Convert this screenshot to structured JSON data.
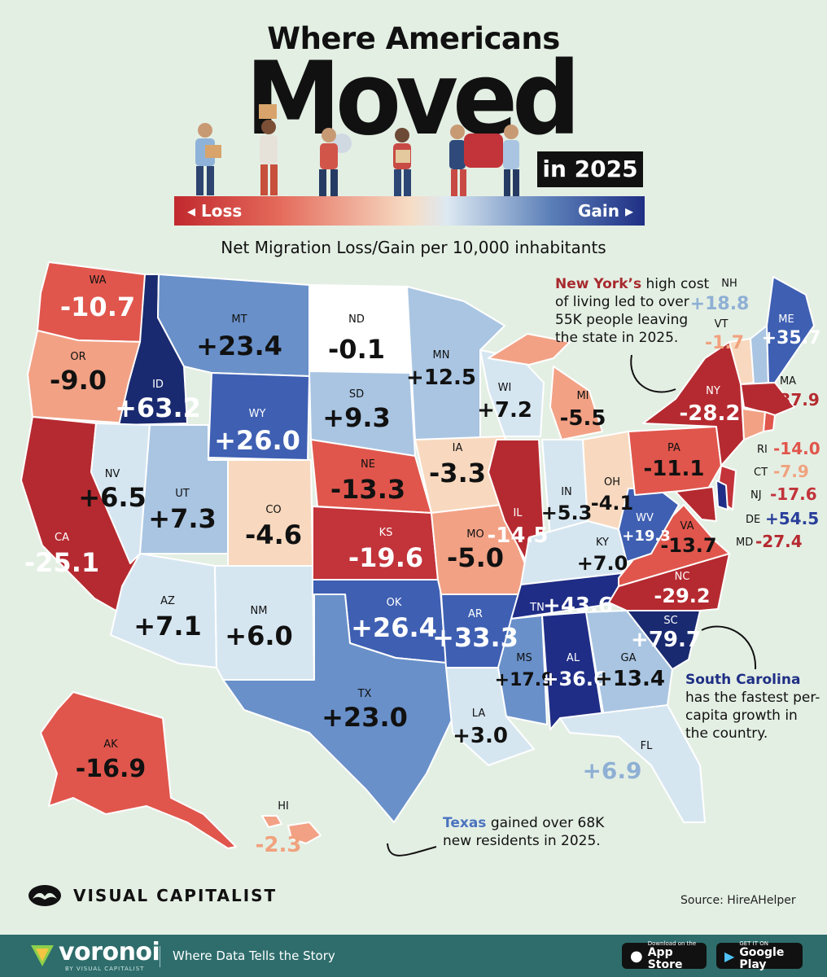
{
  "title": {
    "line1": "Where Americans",
    "line2": "Moved",
    "line3": "in 2025"
  },
  "legend": {
    "loss": "◂ Loss",
    "gain": "Gain ▸"
  },
  "subtitle": "Net Migration Loss/Gain per 10,000 inhabitants",
  "colors": {
    "strong_loss": "#b52a30",
    "loss": "#e0564c",
    "mild_loss": "#f2a185",
    "slight_loss": "#f8d9bf",
    "slight_gain": "#d6e6f1",
    "mild_gain": "#a9c5e2",
    "gain": "#6990c9",
    "strong_gain": "#3e5fb2",
    "max_gain": "#1a2a70",
    "background": "#e4efe4"
  },
  "states": [
    {
      "abbr": "WA",
      "value": "-10.7"
    },
    {
      "abbr": "OR",
      "value": "-9.0"
    },
    {
      "abbr": "CA",
      "value": "-25.1"
    },
    {
      "abbr": "ID",
      "value": "+63.2"
    },
    {
      "abbr": "NV",
      "value": "+6.5"
    },
    {
      "abbr": "MT",
      "value": "+23.4"
    },
    {
      "abbr": "WY",
      "value": "+26.0"
    },
    {
      "abbr": "UT",
      "value": "+7.3"
    },
    {
      "abbr": "AZ",
      "value": "+7.1"
    },
    {
      "abbr": "CO",
      "value": "-4.6"
    },
    {
      "abbr": "NM",
      "value": "+6.0"
    },
    {
      "abbr": "ND",
      "value": "-0.1"
    },
    {
      "abbr": "SD",
      "value": "+9.3"
    },
    {
      "abbr": "NE",
      "value": "-13.3"
    },
    {
      "abbr": "KS",
      "value": "-19.6"
    },
    {
      "abbr": "OK",
      "value": "+26.4"
    },
    {
      "abbr": "TX",
      "value": "+23.0"
    },
    {
      "abbr": "MN",
      "value": "+12.5"
    },
    {
      "abbr": "IA",
      "value": "-3.3"
    },
    {
      "abbr": "MO",
      "value": "-5.0"
    },
    {
      "abbr": "AR",
      "value": "+33.3"
    },
    {
      "abbr": "LA",
      "value": "+3.0"
    },
    {
      "abbr": "WI",
      "value": "+7.2"
    },
    {
      "abbr": "IL",
      "value": "-14.5"
    },
    {
      "abbr": "MI",
      "value": "-5.5"
    },
    {
      "abbr": "IN",
      "value": "+5.3"
    },
    {
      "abbr": "OH",
      "value": "-4.1"
    },
    {
      "abbr": "KY",
      "value": "+7.0"
    },
    {
      "abbr": "TN",
      "value": "+43.6"
    },
    {
      "abbr": "MS",
      "value": "+17.9"
    },
    {
      "abbr": "AL",
      "value": "+36.6"
    },
    {
      "abbr": "GA",
      "value": "+13.4"
    },
    {
      "abbr": "FL",
      "value": "+6.9"
    },
    {
      "abbr": "SC",
      "value": "+79.7"
    },
    {
      "abbr": "NC",
      "value": "-29.2"
    },
    {
      "abbr": "VA",
      "value": "-13.7"
    },
    {
      "abbr": "WV",
      "value": "+19.3"
    },
    {
      "abbr": "PA",
      "value": "-11.1"
    },
    {
      "abbr": "NY",
      "value": "-28.2"
    },
    {
      "abbr": "VT",
      "value": "-1.7"
    },
    {
      "abbr": "NH",
      "value": "+18.8"
    },
    {
      "abbr": "ME",
      "value": "+35.7"
    },
    {
      "abbr": "MA",
      "value": "-37.9"
    },
    {
      "abbr": "RI",
      "value": "-14.0"
    },
    {
      "abbr": "CT",
      "value": "-7.9"
    },
    {
      "abbr": "NJ",
      "value": "-17.6"
    },
    {
      "abbr": "DE",
      "value": "+54.5"
    },
    {
      "abbr": "MD",
      "value": "-27.4"
    },
    {
      "abbr": "AK",
      "value": "-16.9"
    },
    {
      "abbr": "HI",
      "value": "-2.3"
    }
  ],
  "notes": {
    "ny": {
      "bold": "New York’s",
      "rest": " high cost of living led to over 55K people leaving the state in 2025."
    },
    "sc": {
      "bold": "South Carolina",
      "rest": " has the fastest per-capita growth in the country."
    },
    "tx": {
      "bold": "Texas",
      "rest": " gained over 68K new residents in 2025."
    }
  },
  "branding": {
    "name": "VISUAL CAPITALIST",
    "source": "Source: HireAHelper",
    "voronoi": "voronoi",
    "voronoi_sub": "BY VISUAL CAPITALIST",
    "tagline": "Where Data Tells the Story",
    "appstore_small": "Download on the",
    "appstore_big": "App Store",
    "gplay_small": "GET IT ON",
    "gplay_big": "Google Play"
  }
}
